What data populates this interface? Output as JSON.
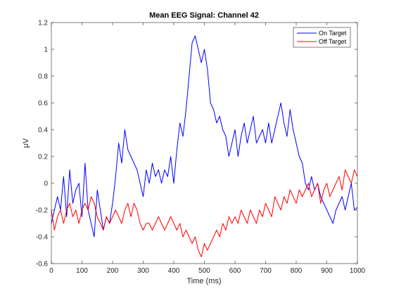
{
  "chart_data": {
    "type": "line",
    "title": "Mean EEG Signal: Channel 42",
    "xlabel": "Time (ms)",
    "ylabel": "μV",
    "xlim": [
      0,
      1000
    ],
    "ylim": [
      -0.6,
      1.2
    ],
    "x_ticks": [
      0,
      100,
      200,
      300,
      400,
      500,
      600,
      700,
      800,
      900,
      1000
    ],
    "y_ticks": [
      -0.6,
      -0.4,
      -0.2,
      0,
      0.2,
      0.4,
      0.6,
      0.8,
      1,
      1.2
    ],
    "x_tick_labels": [
      "0",
      "100",
      "200",
      "300",
      "400",
      "500",
      "600",
      "700",
      "800",
      "900",
      "1000"
    ],
    "y_tick_labels": [
      "-0.6",
      "-0.4",
      "-0.2",
      "0",
      "0.2",
      "0.4",
      "0.6",
      "0.8",
      "1",
      "1.2"
    ],
    "grid": false,
    "legend": {
      "placement": "top-right",
      "entries": [
        "On Target",
        "Off Target"
      ]
    },
    "series": [
      {
        "name": "On Target",
        "color": "#0000ff",
        "x": [
          0,
          10,
          20,
          30,
          40,
          50,
          60,
          70,
          80,
          90,
          100,
          110,
          120,
          130,
          140,
          150,
          160,
          170,
          180,
          190,
          200,
          210,
          220,
          230,
          240,
          250,
          260,
          270,
          280,
          290,
          300,
          310,
          320,
          330,
          340,
          350,
          360,
          370,
          380,
          390,
          400,
          410,
          420,
          430,
          440,
          450,
          460,
          470,
          480,
          490,
          500,
          510,
          520,
          530,
          540,
          550,
          560,
          570,
          580,
          590,
          600,
          610,
          620,
          630,
          640,
          650,
          660,
          670,
          680,
          690,
          700,
          710,
          720,
          730,
          740,
          750,
          760,
          770,
          780,
          790,
          800,
          810,
          820,
          830,
          840,
          850,
          860,
          870,
          880,
          890,
          900,
          910,
          920,
          930,
          940,
          950,
          960,
          970,
          980,
          990,
          1000
        ],
        "y": [
          -0.3,
          -0.2,
          -0.1,
          -0.2,
          0.05,
          -0.25,
          0.1,
          -0.15,
          -0.05,
          0.0,
          -0.25,
          0.15,
          -0.2,
          -0.3,
          -0.4,
          -0.05,
          -0.2,
          -0.35,
          -0.25,
          -0.3,
          -0.15,
          0.05,
          0.3,
          0.15,
          0.4,
          0.25,
          0.2,
          0.15,
          0.1,
          0.0,
          -0.1,
          0.1,
          0.0,
          0.15,
          0.05,
          0.1,
          0.0,
          0.1,
          0.05,
          0.2,
          0.0,
          0.25,
          0.45,
          0.35,
          0.55,
          0.8,
          1.05,
          1.1,
          1.0,
          0.9,
          1.0,
          0.85,
          0.6,
          0.55,
          0.45,
          0.5,
          0.4,
          0.35,
          0.2,
          0.3,
          0.4,
          0.2,
          0.35,
          0.45,
          0.3,
          0.4,
          0.5,
          0.3,
          0.35,
          0.4,
          0.3,
          0.45,
          0.3,
          0.4,
          0.5,
          0.6,
          0.45,
          0.35,
          0.55,
          0.4,
          0.3,
          0.2,
          0.15,
          0.0,
          -0.05,
          0.05,
          -0.05,
          0.0,
          -0.1,
          -0.15,
          -0.2,
          -0.25,
          -0.3,
          -0.2,
          -0.15,
          -0.1,
          -0.2,
          -0.1,
          0.0,
          -0.2,
          -0.18
        ]
      },
      {
        "name": "Off Target",
        "color": "#ff0000",
        "x": [
          0,
          10,
          20,
          30,
          40,
          50,
          60,
          70,
          80,
          90,
          100,
          110,
          120,
          130,
          140,
          150,
          160,
          170,
          180,
          190,
          200,
          210,
          220,
          230,
          240,
          250,
          260,
          270,
          280,
          290,
          300,
          310,
          320,
          330,
          340,
          350,
          360,
          370,
          380,
          390,
          400,
          410,
          420,
          430,
          440,
          450,
          460,
          470,
          480,
          490,
          500,
          510,
          520,
          530,
          540,
          550,
          560,
          570,
          580,
          590,
          600,
          610,
          620,
          630,
          640,
          650,
          660,
          670,
          680,
          690,
          700,
          710,
          720,
          730,
          740,
          750,
          760,
          770,
          780,
          790,
          800,
          810,
          820,
          830,
          840,
          850,
          860,
          870,
          880,
          890,
          900,
          910,
          920,
          930,
          940,
          950,
          960,
          970,
          980,
          990,
          1000
        ],
        "y": [
          -0.2,
          -0.35,
          -0.25,
          -0.2,
          -0.3,
          -0.2,
          -0.15,
          -0.25,
          -0.2,
          -0.3,
          -0.2,
          -0.15,
          -0.2,
          -0.1,
          -0.15,
          -0.25,
          -0.3,
          -0.35,
          -0.25,
          -0.3,
          -0.25,
          -0.2,
          -0.25,
          -0.3,
          -0.2,
          -0.15,
          -0.25,
          -0.15,
          -0.2,
          -0.3,
          -0.35,
          -0.3,
          -0.3,
          -0.35,
          -0.3,
          -0.25,
          -0.3,
          -0.35,
          -0.3,
          -0.25,
          -0.3,
          -0.35,
          -0.3,
          -0.4,
          -0.35,
          -0.4,
          -0.45,
          -0.4,
          -0.5,
          -0.55,
          -0.45,
          -0.5,
          -0.45,
          -0.4,
          -0.35,
          -0.4,
          -0.3,
          -0.35,
          -0.25,
          -0.3,
          -0.25,
          -0.3,
          -0.2,
          -0.25,
          -0.3,
          -0.2,
          -0.25,
          -0.3,
          -0.2,
          -0.25,
          -0.15,
          -0.2,
          -0.25,
          -0.1,
          -0.15,
          -0.2,
          -0.1,
          -0.15,
          -0.05,
          -0.1,
          -0.15,
          -0.05,
          -0.1,
          -0.05,
          0.0,
          -0.1,
          -0.05,
          0.0,
          -0.15,
          -0.05,
          0.0,
          -0.1,
          -0.05,
          0.0,
          0.05,
          -0.05,
          0.1,
          0.05,
          0.0,
          0.1,
          0.05
        ]
      }
    ]
  }
}
